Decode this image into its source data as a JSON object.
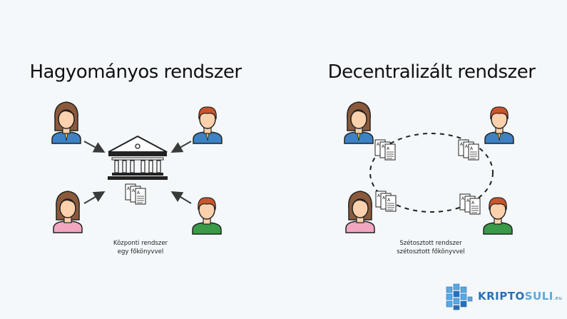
{
  "left": {
    "title": "Hagyományos rendszer",
    "caption_line1": "Központi rendszer",
    "caption_line2": "egy főkönyvvel"
  },
  "right": {
    "title": "Decentralizált rendszer",
    "caption_line1": "Szétosztott rendszer",
    "caption_line2": "szétosztott főkönyvvel"
  },
  "logo": {
    "part1": "KRIPTO",
    "part2": "SULI",
    "tld": ".eu"
  },
  "colors": {
    "background": "#f4f8fb",
    "skin": "#fcd1ad",
    "hair_brown": "#8b5a3c",
    "hair_red": "#c8552b",
    "shirt_blue": "#3c82c4",
    "shirt_pink": "#f3a6c0",
    "shirt_green": "#3a9a48",
    "outline": "#222222",
    "logo_blue": "#2a6fb5"
  }
}
